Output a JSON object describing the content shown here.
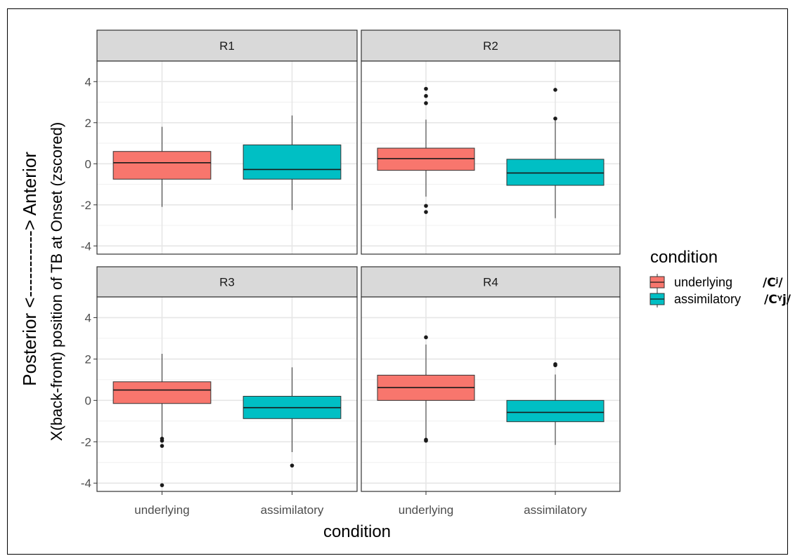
{
  "chart_data": {
    "type": "boxplot",
    "facets": [
      "R1",
      "R2",
      "R3",
      "R4"
    ],
    "categories": [
      "underlying",
      "assimilatory"
    ],
    "xlabel": "condition",
    "ylabel_line1": "Posterior <-----------> Anterior",
    "ylabel_line2": "X(back-front) position of TB at Onset (zscored)",
    "ylim": [
      -4.4,
      5
    ],
    "yticks": [
      -4,
      -2,
      0,
      2,
      4
    ],
    "ytick_labels": [
      "-4",
      "-2",
      "0",
      "2",
      "4"
    ],
    "grid": true,
    "legend": {
      "title": "condition",
      "placement": "right",
      "entries": [
        {
          "label": "underlying",
          "ipa": "/Cʲ/",
          "color": "#F8766D"
        },
        {
          "label": "assimilatory",
          "ipa": "/Cᵞj/",
          "color": "#00BFC4"
        }
      ]
    },
    "panels": [
      {
        "facet": "R1",
        "boxes": [
          {
            "category": "underlying",
            "whisker_low": -2.1,
            "q1": -0.75,
            "median": 0.05,
            "q3": 0.6,
            "whisker_high": 1.8,
            "outliers": []
          },
          {
            "category": "assimilatory",
            "whisker_low": -2.25,
            "q1": -0.75,
            "median": -0.28,
            "q3": 0.92,
            "whisker_high": 2.35,
            "outliers": []
          }
        ]
      },
      {
        "facet": "R2",
        "boxes": [
          {
            "category": "underlying",
            "whisker_low": -1.6,
            "q1": -0.32,
            "median": 0.25,
            "q3": 0.76,
            "whisker_high": 2.15,
            "outliers": [
              3.65,
              3.3,
              2.95,
              -2.05,
              -2.35
            ]
          },
          {
            "category": "assimilatory",
            "whisker_low": -2.65,
            "q1": -1.05,
            "median": -0.45,
            "q3": 0.22,
            "whisker_high": 2.1,
            "outliers": [
              3.6,
              2.2
            ]
          }
        ]
      },
      {
        "facet": "R3",
        "boxes": [
          {
            "category": "underlying",
            "whisker_low": -1.75,
            "q1": -0.15,
            "median": 0.5,
            "q3": 0.9,
            "whisker_high": 2.25,
            "outliers": [
              -1.85,
              -1.95,
              -2.2,
              -4.1
            ]
          },
          {
            "category": "assimilatory",
            "whisker_low": -2.5,
            "q1": -0.88,
            "median": -0.35,
            "q3": 0.2,
            "whisker_high": 1.6,
            "outliers": [
              -3.15
            ]
          }
        ]
      },
      {
        "facet": "R4",
        "boxes": [
          {
            "category": "underlying",
            "whisker_low": -1.85,
            "q1": 0.0,
            "median": 0.62,
            "q3": 1.22,
            "whisker_high": 2.7,
            "outliers": [
              3.05,
              -1.9,
              -1.95
            ]
          },
          {
            "category": "assimilatory",
            "whisker_low": -2.15,
            "q1": -1.03,
            "median": -0.58,
            "q3": 0.0,
            "whisker_high": 1.25,
            "outliers": [
              1.7,
              1.75
            ]
          }
        ]
      }
    ]
  }
}
